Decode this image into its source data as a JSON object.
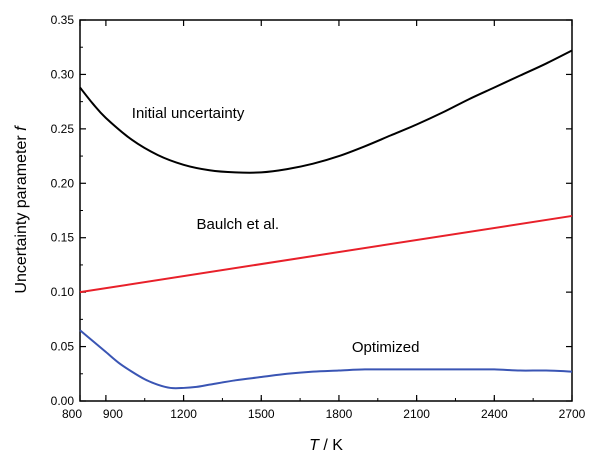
{
  "chart_data": {
    "type": "line",
    "xlabel_var": "T",
    "xlabel_unit": " / K",
    "ylabel_text": "Uncertainty parameter ",
    "ylabel_var": "f",
    "xlim": [
      800,
      2700
    ],
    "ylim": [
      0,
      0.35
    ],
    "xticks": [
      800,
      900,
      1200,
      1500,
      1800,
      2100,
      2400,
      2700
    ],
    "xtick_labels": [
      "800",
      "900",
      "1200",
      "1500",
      "1800",
      "2100",
      "2400",
      "2700"
    ],
    "yticks": [
      0,
      0.05,
      0.1,
      0.15,
      0.2,
      0.25,
      0.3,
      0.35
    ],
    "ytick_labels": [
      "0.00",
      "0.05",
      "0.10",
      "0.15",
      "0.20",
      "0.25",
      "0.30",
      "0.35"
    ],
    "grid": false,
    "series": [
      {
        "label": "Initial uncertainty",
        "color": "#000000",
        "label_at": [
          1000,
          0.26
        ],
        "x": [
          800,
          850,
          900,
          1000,
          1100,
          1200,
          1300,
          1400,
          1500,
          1600,
          1700,
          1800,
          1900,
          2000,
          2100,
          2200,
          2300,
          2400,
          2500,
          2600,
          2700
        ],
        "y": [
          0.288,
          0.273,
          0.26,
          0.24,
          0.226,
          0.217,
          0.212,
          0.21,
          0.21,
          0.213,
          0.218,
          0.225,
          0.234,
          0.244,
          0.254,
          0.265,
          0.277,
          0.288,
          0.299,
          0.31,
          0.322
        ]
      },
      {
        "label": "Baulch et al.",
        "color": "#e8202a",
        "label_at": [
          1250,
          0.158
        ],
        "x": [
          800,
          2700
        ],
        "y": [
          0.1,
          0.17
        ]
      },
      {
        "label": "Optimized",
        "color": "#3a55b4",
        "label_at": [
          1850,
          0.045
        ],
        "x": [
          800,
          850,
          900,
          950,
          1000,
          1050,
          1100,
          1150,
          1200,
          1250,
          1300,
          1400,
          1500,
          1600,
          1700,
          1800,
          1900,
          2000,
          2100,
          2200,
          2300,
          2400,
          2500,
          2600,
          2700
        ],
        "y": [
          0.065,
          0.055,
          0.045,
          0.035,
          0.027,
          0.02,
          0.015,
          0.012,
          0.012,
          0.013,
          0.015,
          0.019,
          0.022,
          0.025,
          0.027,
          0.028,
          0.029,
          0.029,
          0.029,
          0.029,
          0.029,
          0.029,
          0.028,
          0.028,
          0.027
        ]
      }
    ]
  }
}
